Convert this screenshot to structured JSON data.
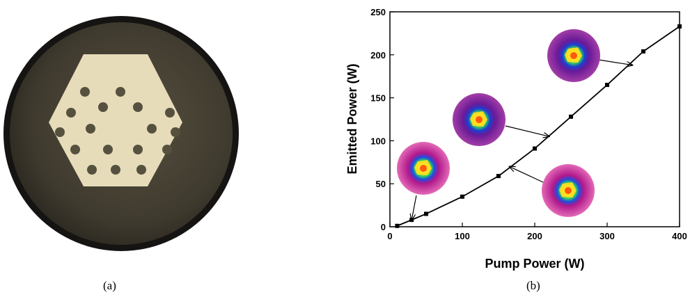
{
  "captions": {
    "a": "(a)",
    "b": "(b)"
  },
  "photo": {
    "description_icon": "fiber-cross-section",
    "colors": {
      "cladding": "#3f3a2e",
      "core": "#e6dcba",
      "holes": "#56513f"
    }
  },
  "chart_data": {
    "type": "line",
    "xlabel": "Pump Power (W)",
    "ylabel": "Emitted Power (W)",
    "xlim": [
      0,
      400
    ],
    "ylim": [
      0,
      250
    ],
    "xticks": [
      0,
      100,
      200,
      300,
      400
    ],
    "yticks": [
      0,
      50,
      100,
      150,
      200,
      250
    ],
    "grid": false,
    "series": [
      {
        "color": "#000000",
        "marker": "square",
        "x": [
          10,
          30,
          50,
          100,
          150,
          200,
          250,
          300,
          350,
          400
        ],
        "y": [
          1,
          8,
          15,
          35,
          59,
          91,
          128,
          165,
          204,
          233
        ]
      }
    ],
    "annotations": [
      {
        "type": "beam-profile-inset",
        "points_to": [
          30,
          8
        ]
      },
      {
        "type": "beam-profile-inset",
        "points_to": [
          165,
          70
        ]
      },
      {
        "type": "beam-profile-inset",
        "points_to": [
          220,
          105
        ]
      },
      {
        "type": "beam-profile-inset",
        "points_to": [
          335,
          188
        ]
      }
    ]
  }
}
